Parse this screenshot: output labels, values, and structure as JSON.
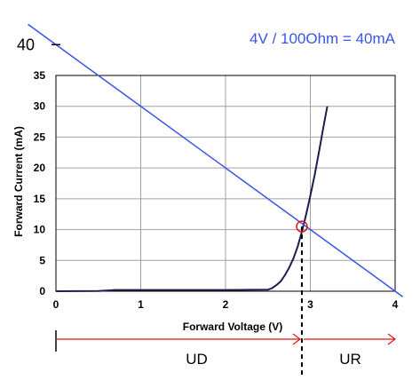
{
  "chart_data": {
    "type": "line",
    "xlabel": "Forward Voltage (V)",
    "ylabel": "Forward Current (mA)",
    "xlim": [
      0,
      4
    ],
    "ylim": [
      0,
      35
    ],
    "x_ticks": [
      "0",
      "1",
      "2",
      "3",
      "4"
    ],
    "y_ticks": [
      "0",
      "5",
      "10",
      "15",
      "20",
      "25",
      "30",
      "35"
    ],
    "grid": true,
    "series": [
      {
        "color": "#1a1f4f",
        "x": [
          0,
          0.5,
          0.7,
          1.0,
          1.5,
          2.0,
          2.5,
          2.55,
          2.6,
          2.65,
          2.7,
          2.75,
          2.8,
          2.85,
          2.9,
          2.95,
          3.0,
          3.05,
          3.1,
          3.15,
          3.2
        ],
        "y": [
          0,
          0.05,
          0.2,
          0.2,
          0.2,
          0.2,
          0.25,
          0.5,
          1.0,
          1.6,
          2.6,
          3.8,
          5.3,
          7.2,
          9.6,
          12.4,
          15.5,
          18.8,
          22.5,
          26.3,
          30.0
        ]
      },
      {
        "color": "#3a55e6",
        "x": [
          0,
          4
        ],
        "y": [
          40,
          0
        ]
      }
    ],
    "annotations": {
      "load_line_label": "4V / 100Ohm = 40mA",
      "y_intercept_label": "40",
      "operating_point": {
        "x": 2.9,
        "y": 10.5
      },
      "ud_label": "UD",
      "ur_label": "UR"
    }
  }
}
